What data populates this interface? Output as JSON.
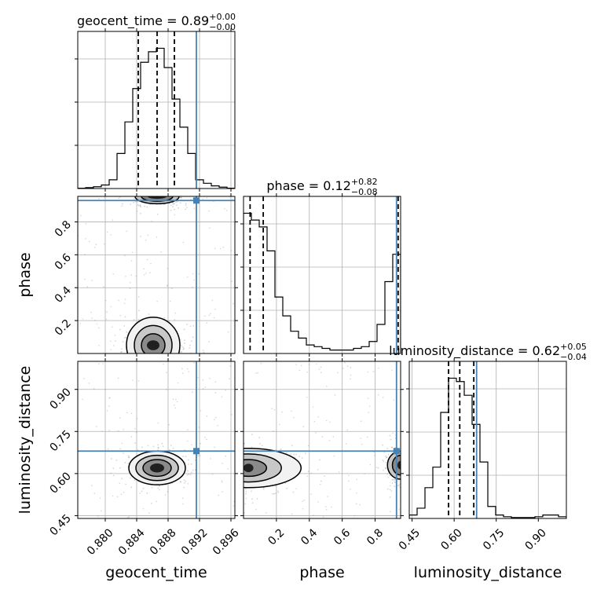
{
  "chart_data": {
    "type": "corner",
    "parameters": [
      "geocent_time",
      "phase",
      "luminosity_distance"
    ],
    "truths": {
      "geocent_time": 0.8916,
      "phase": 0.93,
      "luminosity_distance": 0.68
    },
    "truth_color": "#4682b4",
    "grid": true,
    "titles": [
      {
        "param": "geocent_time",
        "text": "geocent_time = 0.89",
        "plus": "+0.00",
        "minus": "−0.00"
      },
      {
        "param": "phase",
        "text": "phase = 0.12",
        "plus": "+0.82",
        "minus": "−0.08"
      },
      {
        "param": "luminosity_distance",
        "text": "luminosity_distance = 0.62",
        "plus": "+0.05",
        "minus": "−0.04"
      }
    ],
    "axes": {
      "geocent_time": {
        "label": "geocent_time",
        "range": [
          0.8765,
          0.8965
        ],
        "ticks": [
          0.88,
          0.884,
          0.888,
          0.892,
          0.896
        ],
        "tick_labels": [
          "0.880",
          "0.884",
          "0.888",
          "0.892",
          "0.896"
        ]
      },
      "phase": {
        "label": "phase",
        "range": [
          0.0,
          0.955
        ],
        "ticks": [
          0.2,
          0.4,
          0.6,
          0.8
        ],
        "tick_labels": [
          "0.2",
          "0.4",
          "0.6",
          "0.8"
        ]
      },
      "luminosity_distance": {
        "label": "luminosity_distance",
        "range": [
          0.44,
          1.0
        ],
        "ticks": [
          0.45,
          0.6,
          0.75,
          0.9
        ],
        "tick_labels": [
          "0.45",
          "0.60",
          "0.75",
          "0.90"
        ]
      }
    },
    "histograms": {
      "geocent_time": {
        "edges": [
          0.8765,
          0.8775,
          0.8785,
          0.8795,
          0.8805,
          0.8815,
          0.8825,
          0.8835,
          0.8845,
          0.8855,
          0.8865,
          0.8875,
          0.8885,
          0.8895,
          0.8905,
          0.8915,
          0.8925,
          0.8935,
          0.8945,
          0.8955,
          0.8965
        ],
        "counts": [
          0.002,
          0.005,
          0.01,
          0.02,
          0.05,
          0.2,
          0.38,
          0.57,
          0.72,
          0.78,
          0.8,
          0.69,
          0.51,
          0.35,
          0.2,
          0.05,
          0.03,
          0.015,
          0.008,
          0.002
        ],
        "quantiles": [
          0.8842,
          0.8866,
          0.8888
        ]
      },
      "phase": {
        "edges": [
          0.0,
          0.0477,
          0.0955,
          0.1432,
          0.191,
          0.2387,
          0.2865,
          0.3342,
          0.382,
          0.4297,
          0.4775,
          0.5252,
          0.573,
          0.6207,
          0.6685,
          0.7162,
          0.764,
          0.8117,
          0.8595,
          0.9072,
          0.955
        ],
        "counts": [
          0.82,
          0.78,
          0.74,
          0.6,
          0.33,
          0.22,
          0.13,
          0.09,
          0.05,
          0.04,
          0.03,
          0.02,
          0.02,
          0.02,
          0.03,
          0.04,
          0.07,
          0.17,
          0.42,
          0.58
        ],
        "quantiles": [
          0.04,
          0.12,
          0.94
        ]
      },
      "luminosity_distance": {
        "edges": [
          0.44,
          0.468,
          0.496,
          0.524,
          0.552,
          0.58,
          0.608,
          0.636,
          0.664,
          0.692,
          0.72,
          0.748,
          0.776,
          0.804,
          0.832,
          0.86,
          0.888,
          0.916,
          0.944,
          0.972,
          1.0
        ],
        "counts": [
          0.02,
          0.06,
          0.18,
          0.3,
          0.62,
          0.82,
          0.8,
          0.72,
          0.55,
          0.33,
          0.07,
          0.02,
          0.01,
          0.005,
          0.005,
          0.005,
          0.01,
          0.02,
          0.02,
          0.01
        ],
        "quantiles": [
          0.58,
          0.62,
          0.67
        ]
      }
    },
    "posterior_modes": [
      {
        "x_param": "geocent_time",
        "y_param": "phase",
        "center": [
          0.8861,
          0.05
        ],
        "spread": [
          0.0018,
          0.06
        ],
        "contours": [
          [
            0.0008,
            0.03
          ],
          [
            0.0015,
            0.07
          ],
          [
            0.0024,
            0.12
          ],
          [
            0.0034,
            0.17
          ]
        ]
      },
      {
        "x_param": "geocent_time",
        "y_param": "phase",
        "center": [
          0.8866,
          0.955
        ],
        "spread": [
          0.0018,
          0.03
        ],
        "contours": [
          [
            0.0012,
            0.015
          ],
          [
            0.002,
            0.03
          ],
          [
            0.0028,
            0.045
          ]
        ]
      },
      {
        "x_param": "geocent_time",
        "y_param": "luminosity_distance",
        "center": [
          0.8866,
          0.62
        ],
        "spread": [
          0.0018,
          0.03
        ],
        "contours": [
          [
            0.0009,
            0.016
          ],
          [
            0.0018,
            0.03
          ],
          [
            0.0027,
            0.045
          ],
          [
            0.0036,
            0.06
          ]
        ]
      },
      {
        "x_param": "phase",
        "y_param": "luminosity_distance",
        "center": [
          0.03,
          0.62
        ],
        "spread": [
          0.12,
          0.04
        ],
        "contours": [
          [
            0.03,
            0.015
          ],
          [
            0.11,
            0.03
          ],
          [
            0.2,
            0.05
          ],
          [
            0.32,
            0.07
          ]
        ]
      },
      {
        "x_param": "phase",
        "y_param": "luminosity_distance",
        "center": [
          0.955,
          0.63
        ],
        "spread": [
          0.04,
          0.03
        ],
        "contours": [
          [
            0.02,
            0.015
          ],
          [
            0.05,
            0.035
          ],
          [
            0.08,
            0.05
          ]
        ]
      }
    ]
  }
}
